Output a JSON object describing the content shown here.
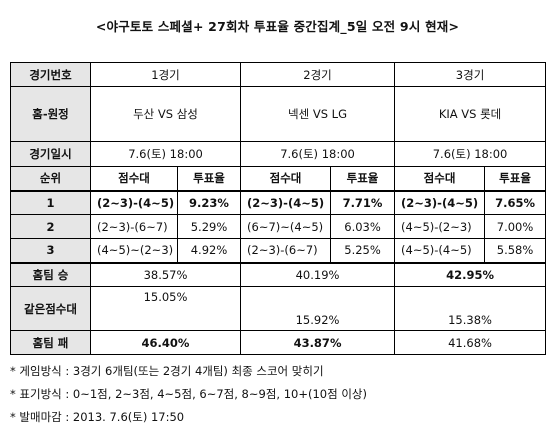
{
  "title": "<야구토토 스페셜+ 27회차 투표율 중간집계_5일 오전 9시 현재>",
  "labels": {
    "game_no": "경기번호",
    "home_away": "홈-원정",
    "datetime": "경기일시",
    "rank": "순위",
    "score_band": "점수대",
    "vote_rate": "투표율",
    "home_win": "홈팀 승",
    "same_score": "같은점수대",
    "home_lose": "홈팀 패"
  },
  "games": [
    {
      "no": "1경기",
      "match": "두산 VS 삼성",
      "datetime": "7.6(토) 18:00"
    },
    {
      "no": "2경기",
      "match": "넥센 VS LG",
      "datetime": "7.6(토) 18:00"
    },
    {
      "no": "3경기",
      "match": "KIA VS 롯데",
      "datetime": "7.6(토) 18:00"
    }
  ],
  "ranks": [
    {
      "rank": "1",
      "cells": [
        {
          "score": "(2~3)-(4~5)",
          "rate": "9.23%"
        },
        {
          "score": "(2~3)-(4~5)",
          "rate": "7.71%"
        },
        {
          "score": "(2~3)-(4~5)",
          "rate": "7.65%"
        }
      ]
    },
    {
      "rank": "2",
      "cells": [
        {
          "score": "(2~3)-(6~7)",
          "rate": "5.29%"
        },
        {
          "score": "(6~7)~(4~5)",
          "rate": "6.03%"
        },
        {
          "score": "(4~5)-(2~3)",
          "rate": "7.00%"
        }
      ]
    },
    {
      "rank": "3",
      "cells": [
        {
          "score": "(4~5)~(2~3)",
          "rate": "4.92%"
        },
        {
          "score": "(2~3)-(6~7)",
          "rate": "5.25%"
        },
        {
          "score": "(4~5)-(4~5)",
          "rate": "5.58%"
        }
      ]
    }
  ],
  "home_win": [
    "38.57%",
    "40.19%",
    "42.95%"
  ],
  "same_score": [
    "15.05%",
    "15.92%",
    "15.38%"
  ],
  "home_lose": [
    "46.40%",
    "43.87%",
    "41.68%"
  ],
  "notes": [
    "* 게임방식 : 3경기 6개팀(또는 2경기 4개팀) 최종 스코어 맞히기",
    "* 표기방식 : 0~1점, 2~3점, 4~5점, 6~7점, 8~9점, 10+(10점 이상)",
    "* 발매마감 : 2013. 7.6(토) 17:50"
  ]
}
